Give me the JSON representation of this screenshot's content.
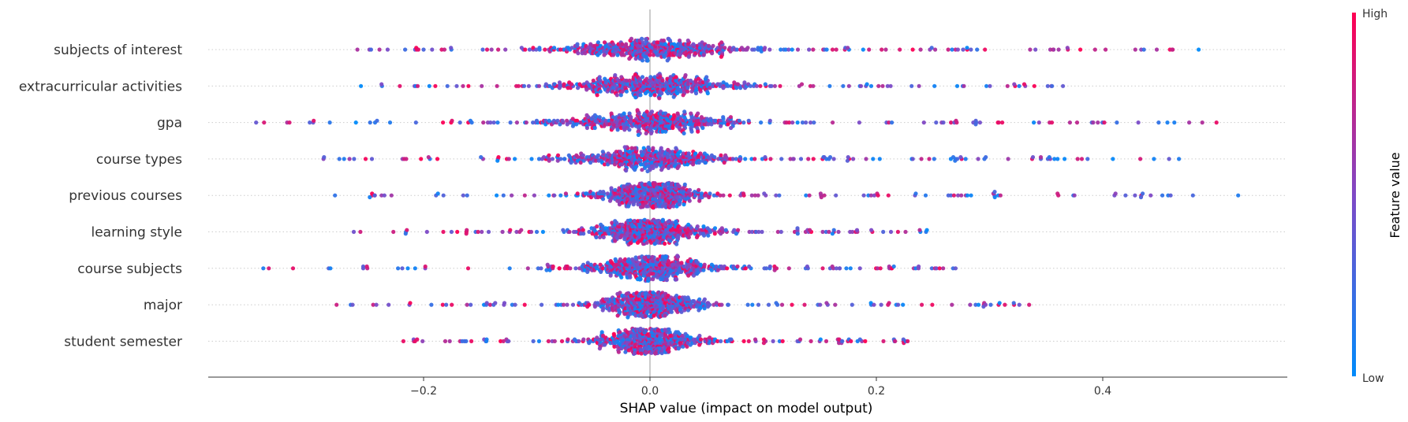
{
  "chart_data": {
    "type": "scatter",
    "subtype": "shap-beeswarm",
    "title": "",
    "xlabel": "SHAP value (impact on model output)",
    "ylabel": "",
    "xlim": [
      -0.39,
      0.565
    ],
    "xticks": [
      -0.2,
      0.0,
      0.2,
      0.4
    ],
    "xtick_labels": [
      "−0.2",
      "0.0",
      "0.2",
      "0.4"
    ],
    "grid": false,
    "colorbar": {
      "title": "Feature value",
      "high_label": "High",
      "low_label": "Low",
      "low_color": "#008bfb",
      "high_color": "#ff0052"
    },
    "features": [
      {
        "name": "subjects of interest",
        "min": -0.258,
        "max": 0.485,
        "spread": 0.085
      },
      {
        "name": "extracurricular activities",
        "min": -0.255,
        "max": 0.365,
        "spread": 0.08
      },
      {
        "name": "gpa",
        "min": -0.348,
        "max": 0.5,
        "spread": 0.085
      },
      {
        "name": "course types",
        "min": -0.288,
        "max": 0.467,
        "spread": 0.075
      },
      {
        "name": "previous courses",
        "min": -0.278,
        "max": 0.52,
        "spread": 0.05
      },
      {
        "name": "learning style",
        "min": -0.262,
        "max": 0.245,
        "spread": 0.055
      },
      {
        "name": "course subjects",
        "min": -0.342,
        "max": 0.27,
        "spread": 0.065
      },
      {
        "name": "major",
        "min": -0.277,
        "max": 0.335,
        "spread": 0.05
      },
      {
        "name": "student semester",
        "min": -0.218,
        "max": 0.228,
        "spread": 0.05
      }
    ]
  }
}
